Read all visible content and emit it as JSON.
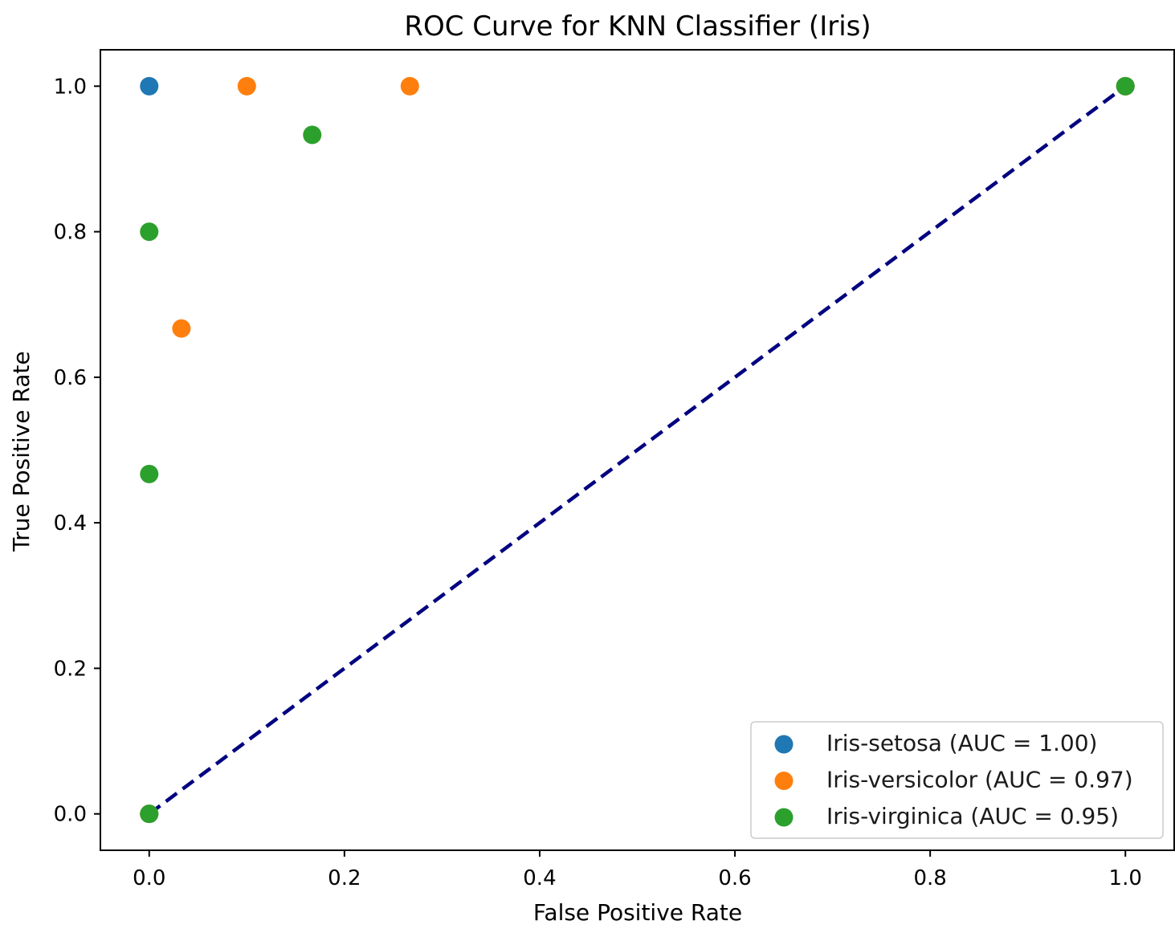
{
  "chart_data": {
    "type": "scatter",
    "title": "ROC Curve for KNN Classifier (Iris)",
    "xlabel": "False Positive Rate",
    "ylabel": "True Positive Rate",
    "xlim": [
      -0.05,
      1.05
    ],
    "ylim": [
      -0.05,
      1.05
    ],
    "x_ticks": [
      0.0,
      0.2,
      0.4,
      0.6,
      0.8,
      1.0
    ],
    "x_tick_labels": [
      "0.0",
      "0.2",
      "0.4",
      "0.6",
      "0.8",
      "1.0"
    ],
    "y_ticks": [
      0.0,
      0.2,
      0.4,
      0.6,
      0.8,
      1.0
    ],
    "y_tick_labels": [
      "0.0",
      "0.2",
      "0.4",
      "0.6",
      "0.8",
      "1.0"
    ],
    "grid": false,
    "legend_position": "lower-right",
    "series": [
      {
        "name": "Iris-setosa (AUC = 1.00)",
        "color": "#1f77b4",
        "points": [
          [
            0.0,
            0.0
          ],
          [
            0.0,
            1.0
          ],
          [
            1.0,
            1.0
          ]
        ]
      },
      {
        "name": "Iris-versicolor (AUC = 0.97)",
        "color": "#ff7f0e",
        "points": [
          [
            0.0,
            0.0
          ],
          [
            0.033,
            0.667
          ],
          [
            0.1,
            1.0
          ],
          [
            0.267,
            1.0
          ],
          [
            1.0,
            1.0
          ]
        ]
      },
      {
        "name": "Iris-virginica (AUC = 0.95)",
        "color": "#2ca02c",
        "points": [
          [
            0.0,
            0.0
          ],
          [
            0.0,
            0.467
          ],
          [
            0.0,
            0.8
          ],
          [
            0.167,
            0.933
          ],
          [
            1.0,
            1.0
          ]
        ]
      }
    ],
    "reference_line": {
      "points": [
        [
          0.0,
          0.0
        ],
        [
          1.0,
          1.0
        ]
      ],
      "color": "#000080",
      "style": "dashed"
    }
  }
}
